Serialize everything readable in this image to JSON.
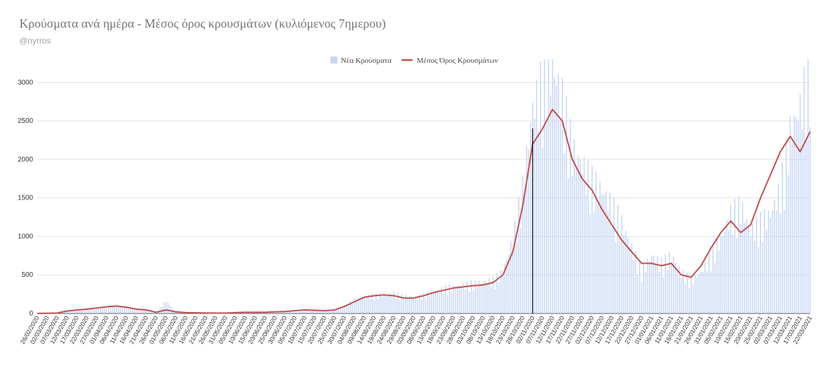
{
  "chart_data": {
    "type": "bar",
    "title": "Κρούσματα ανά ημέρα - Μέσος όρος κρουσμάτων (κυλιόμενος 7ημερου)",
    "subtitle": "@nyrros",
    "xlabel": "",
    "ylabel": "",
    "ylim": [
      0,
      3300
    ],
    "yticks": [
      0,
      500,
      1000,
      1500,
      2000,
      2500,
      3000
    ],
    "grid": true,
    "legend_position": "top-center",
    "x_start": "26/02/2020",
    "x_end": "22/03/2021",
    "x_tick_labels": [
      "26/02/2020",
      "02/03/2020",
      "07/03/2020",
      "12/03/2020",
      "17/03/2020",
      "22/03/2020",
      "27/03/2020",
      "01/04/2020",
      "06/04/2020",
      "11/04/2020",
      "16/04/2020",
      "21/04/2020",
      "26/04/2020",
      "01/05/2020",
      "06/05/2020",
      "11/05/2020",
      "16/05/2020",
      "21/05/2020",
      "26/05/2020",
      "31/05/2020",
      "05/06/2020",
      "10/06/2020",
      "15/06/2020",
      "20/06/2020",
      "25/06/2020",
      "30/06/2020",
      "05/07/2020",
      "10/07/2020",
      "15/07/2020",
      "20/07/2020",
      "25/07/2020",
      "30/07/2020",
      "04/08/2020",
      "09/08/2020",
      "14/08/2020",
      "19/08/2020",
      "24/08/2020",
      "29/08/2020",
      "03/09/2020",
      "08/09/2020",
      "13/09/2020",
      "18/09/2020",
      "23/09/2020",
      "28/09/2020",
      "03/10/2020",
      "08/10/2020",
      "13/10/2020",
      "18/10/2020",
      "23/10/2020",
      "28/10/2020",
      "02/11/2020",
      "07/11/2020",
      "12/11/2020",
      "17/11/2020",
      "22/11/2020",
      "27/11/2020",
      "02/12/2020",
      "07/12/2020",
      "12/12/2020",
      "17/12/2020",
      "22/12/2020",
      "27/12/2020",
      "01/01/2021",
      "06/01/2021",
      "11/01/2021",
      "16/01/2021",
      "21/01/2021",
      "26/01/2021",
      "31/01/2021",
      "05/02/2021",
      "10/02/2021",
      "15/02/2021",
      "20/02/2021",
      "25/02/2021",
      "02/03/2021",
      "07/03/2021",
      "12/03/2021",
      "17/03/2021",
      "22/03/2021"
    ],
    "series": [
      {
        "name": "Νέα Κρούσματα",
        "kind": "bar",
        "color": "#c9d7f5",
        "description": "daily values, approximated at 5-day resolution",
        "values": [
          0,
          2,
          10,
          40,
          45,
          60,
          70,
          80,
          100,
          75,
          55,
          45,
          15,
          150,
          20,
          10,
          15,
          10,
          10,
          10,
          10,
          15,
          10,
          10,
          10,
          15,
          20,
          30,
          40,
          35,
          40,
          90,
          160,
          200,
          220,
          230,
          240,
          210,
          200,
          220,
          250,
          300,
          320,
          340,
          360,
          380,
          400,
          500,
          900,
          1500,
          2500,
          2800,
          3000,
          2600,
          2000,
          1800,
          1600,
          1500,
          1300,
          1100,
          800,
          500,
          700,
          600,
          700,
          500,
          400,
          500,
          700,
          900,
          1200,
          1300,
          1000,
          1100,
          1200,
          1500,
          2200,
          2500,
          3000
        ]
      },
      {
        "name": "Μέσος Όρος Κρουσμάτων",
        "kind": "line",
        "color": "#c0504d",
        "values": [
          0,
          2,
          5,
          30,
          45,
          55,
          70,
          85,
          95,
          80,
          55,
          45,
          15,
          45,
          20,
          10,
          8,
          6,
          5,
          5,
          10,
          15,
          15,
          15,
          20,
          25,
          35,
          45,
          40,
          35,
          45,
          90,
          150,
          210,
          230,
          240,
          230,
          200,
          200,
          230,
          270,
          300,
          330,
          345,
          360,
          370,
          400,
          500,
          800,
          1400,
          2200,
          2400,
          2650,
          2500,
          2000,
          1750,
          1600,
          1350,
          1150,
          950,
          800,
          650,
          650,
          620,
          650,
          500,
          470,
          620,
          850,
          1050,
          1200,
          1050,
          1150,
          1500,
          1800,
          2100,
          2300,
          2100,
          2360
        ]
      }
    ],
    "annotations": [
      {
        "type": "vertical-line",
        "x": "02/11/2020",
        "color": "#000000"
      }
    ]
  }
}
